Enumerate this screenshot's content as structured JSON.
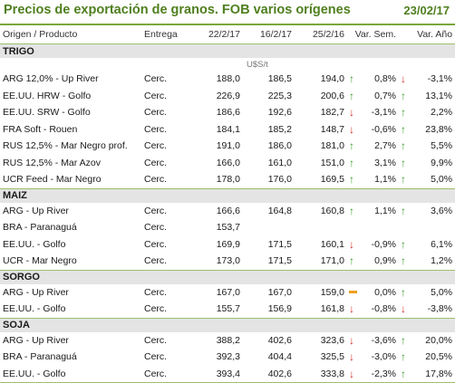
{
  "header": {
    "title": "Precios de exportación de granos. FOB varios orígenes",
    "date": "23/02/17"
  },
  "columns": [
    "Origen / Producto",
    "Entrega",
    "22/2/17",
    "16/2/17",
    "25/2/16",
    "Var. Sem.",
    "Var. Año"
  ],
  "unit": "U$S/t",
  "sections": [
    {
      "name": "TRIGO",
      "rows": [
        {
          "product": "ARG 12,0% - Up River",
          "entrega": "Cerc.",
          "c1": "188,0",
          "c2": "186,5",
          "c3": "194,0",
          "a1": "up",
          "sem": "0,8%",
          "a2": "down",
          "ano": "-3,1%"
        },
        {
          "product": "EE.UU. HRW - Golfo",
          "entrega": "Cerc.",
          "c1": "226,9",
          "c2": "225,3",
          "c3": "200,6",
          "a1": "up",
          "sem": "0,7%",
          "a2": "up",
          "ano": "13,1%"
        },
        {
          "product": "EE.UU. SRW - Golfo",
          "entrega": "Cerc.",
          "c1": "186,6",
          "c2": "192,6",
          "c3": "182,7",
          "a1": "down",
          "sem": "-3,1%",
          "a2": "up",
          "ano": "2,2%"
        },
        {
          "product": "FRA Soft - Rouen",
          "entrega": "Cerc.",
          "c1": "184,1",
          "c2": "185,2",
          "c3": "148,7",
          "a1": "down",
          "sem": "-0,6%",
          "a2": "up",
          "ano": "23,8%"
        },
        {
          "product": "RUS 12,5% - Mar Negro prof.",
          "entrega": "Cerc.",
          "c1": "191,0",
          "c2": "186,0",
          "c3": "181,0",
          "a1": "up",
          "sem": "2,7%",
          "a2": "up",
          "ano": "5,5%"
        },
        {
          "product": "RUS 12,5% - Mar Azov",
          "entrega": "Cerc.",
          "c1": "166,0",
          "c2": "161,0",
          "c3": "151,0",
          "a1": "up",
          "sem": "3,1%",
          "a2": "up",
          "ano": "9,9%"
        },
        {
          "product": "UCR Feed - Mar Negro",
          "entrega": "Cerc.",
          "c1": "178,0",
          "c2": "176,0",
          "c3": "169,5",
          "a1": "up",
          "sem": "1,1%",
          "a2": "up",
          "ano": "5,0%"
        }
      ]
    },
    {
      "name": "MAIZ",
      "rows": [
        {
          "product": "ARG - Up River",
          "entrega": "Cerc.",
          "c1": "166,6",
          "c2": "164,8",
          "c3": "160,8",
          "a1": "up",
          "sem": "1,1%",
          "a2": "up",
          "ano": "3,6%"
        },
        {
          "product": "BRA - Paranaguá",
          "entrega": "Cerc.",
          "c1": "153,7",
          "c2": "",
          "c3": "",
          "a1": "",
          "sem": "",
          "a2": "",
          "ano": ""
        },
        {
          "product": "EE.UU. - Golfo",
          "entrega": "Cerc.",
          "c1": "169,9",
          "c2": "171,5",
          "c3": "160,1",
          "a1": "down",
          "sem": "-0,9%",
          "a2": "up",
          "ano": "6,1%"
        },
        {
          "product": "UCR - Mar Negro",
          "entrega": "Cerc.",
          "c1": "173,0",
          "c2": "171,5",
          "c3": "171,0",
          "a1": "up",
          "sem": "0,9%",
          "a2": "up",
          "ano": "1,2%"
        }
      ]
    },
    {
      "name": "SORGO",
      "rows": [
        {
          "product": "ARG - Up River",
          "entrega": "Cerc.",
          "c1": "167,0",
          "c2": "167,0",
          "c3": "159,0",
          "a1": "flat",
          "sem": "0,0%",
          "a2": "up",
          "ano": "5,0%"
        },
        {
          "product": "EE.UU. - Golfo",
          "entrega": "Cerc.",
          "c1": "155,7",
          "c2": "156,9",
          "c3": "161,8",
          "a1": "down",
          "sem": "-0,8%",
          "a2": "down",
          "ano": "-3,8%"
        }
      ]
    },
    {
      "name": "SOJA",
      "rows": [
        {
          "product": "ARG - Up River",
          "entrega": "Cerc.",
          "c1": "388,2",
          "c2": "402,6",
          "c3": "323,6",
          "a1": "down",
          "sem": "-3,6%",
          "a2": "up",
          "ano": "20,0%"
        },
        {
          "product": "BRA - Paranaguá",
          "entrega": "Cerc.",
          "c1": "392,3",
          "c2": "404,4",
          "c3": "325,5",
          "a1": "down",
          "sem": "-3,0%",
          "a2": "up",
          "ano": "20,5%"
        },
        {
          "product": "EE.UU. - Golfo",
          "entrega": "Cerc.",
          "c1": "393,4",
          "c2": "402,6",
          "c3": "333,8",
          "a1": "down",
          "sem": "-2,3%",
          "a2": "up",
          "ano": "17,8%"
        }
      ]
    }
  ]
}
